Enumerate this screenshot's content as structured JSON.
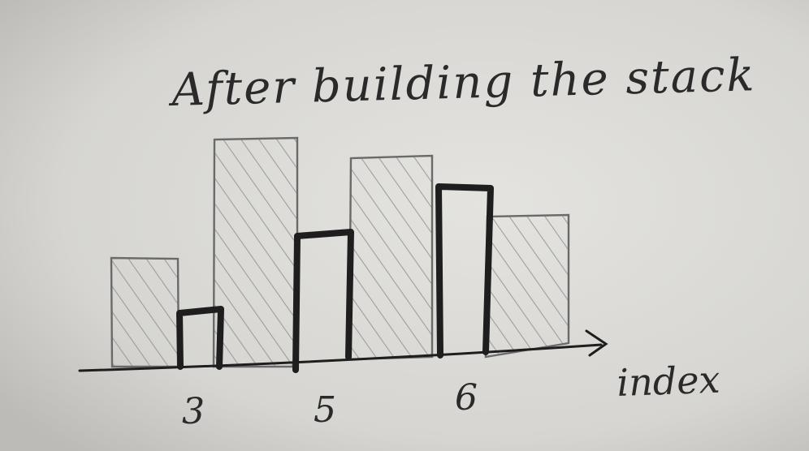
{
  "title": "After building the stack",
  "axis_label": "index",
  "tick_labels": [
    "3",
    "5",
    "6"
  ],
  "colors": {
    "paper": "#d9d8d4",
    "ink": "#1e1e1e",
    "pencil": "#6a6a6a",
    "hatch": "#8a8a8a"
  }
}
